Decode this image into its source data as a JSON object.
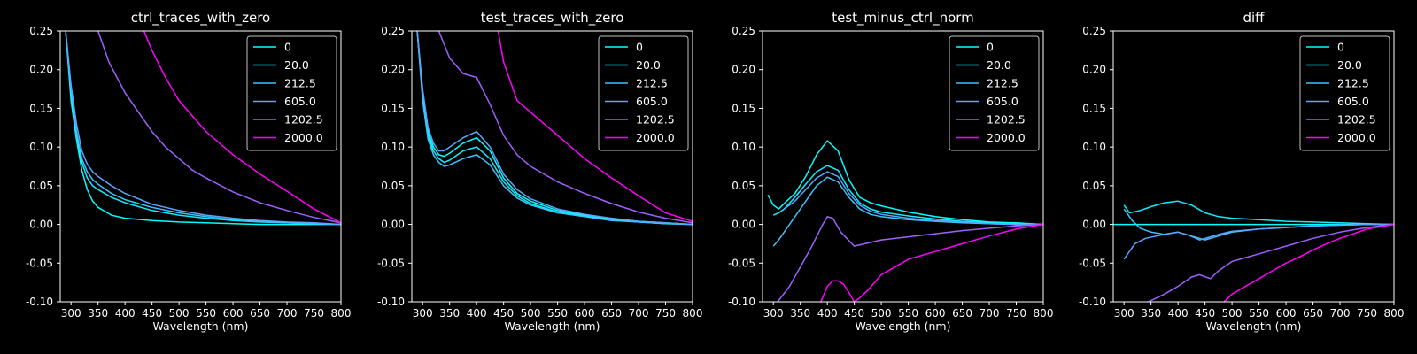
{
  "chart_data": [
    {
      "type": "line",
      "title": "ctrl_traces_with_zero",
      "xlabel": "Wavelength (nm)",
      "ylabel": "",
      "xlim": [
        280,
        800
      ],
      "ylim": [
        -0.1,
        0.25
      ],
      "xticks": [
        "300",
        "350",
        "400",
        "450",
        "500",
        "550",
        "600",
        "650",
        "700",
        "750",
        "800"
      ],
      "yticks": [
        "-0.10",
        "-0.05",
        "0.00",
        "0.05",
        "0.10",
        "0.15",
        "0.20",
        "0.25"
      ],
      "grid": false,
      "legend_position": "top-right",
      "series": [
        {
          "name": "0",
          "color": "#00ffff",
          "x": [
            290,
            300,
            310,
            320,
            330,
            340,
            350,
            375,
            400,
            450,
            500,
            550,
            600,
            650,
            700,
            750,
            800
          ],
          "y": [
            0.25,
            0.16,
            0.11,
            0.07,
            0.045,
            0.03,
            0.022,
            0.012,
            0.008,
            0.005,
            0.003,
            0.002,
            0.001,
            0.0,
            0.0,
            0.0,
            0.0
          ]
        },
        {
          "name": "20.0",
          "color": "#14ebff",
          "x": [
            290,
            300,
            310,
            320,
            330,
            340,
            350,
            375,
            400,
            450,
            500,
            550,
            600,
            650,
            700,
            750,
            800
          ],
          "y": [
            0.25,
            0.17,
            0.115,
            0.08,
            0.06,
            0.05,
            0.045,
            0.035,
            0.028,
            0.018,
            0.012,
            0.008,
            0.005,
            0.003,
            0.002,
            0.001,
            0.0
          ]
        },
        {
          "name": "212.5",
          "color": "#3cc3ff",
          "x": [
            290,
            300,
            310,
            320,
            330,
            340,
            350,
            375,
            400,
            450,
            500,
            550,
            600,
            650,
            700,
            750,
            800
          ],
          "y": [
            0.25,
            0.175,
            0.12,
            0.085,
            0.068,
            0.058,
            0.052,
            0.04,
            0.032,
            0.022,
            0.015,
            0.01,
            0.006,
            0.004,
            0.002,
            0.001,
            0.0
          ]
        },
        {
          "name": "605.0",
          "color": "#5aa5ff",
          "x": [
            290,
            300,
            310,
            320,
            330,
            340,
            350,
            375,
            400,
            450,
            500,
            550,
            600,
            650,
            700,
            750,
            800
          ],
          "y": [
            0.25,
            0.18,
            0.13,
            0.095,
            0.078,
            0.068,
            0.062,
            0.05,
            0.04,
            0.026,
            0.018,
            0.012,
            0.008,
            0.005,
            0.003,
            0.002,
            0.0
          ]
        },
        {
          "name": "1202.5",
          "color": "#a05fff",
          "x": [
            350,
            370,
            400,
            425,
            450,
            475,
            500,
            525,
            550,
            600,
            650,
            700,
            750,
            800
          ],
          "y": [
            0.25,
            0.21,
            0.17,
            0.145,
            0.12,
            0.1,
            0.085,
            0.07,
            0.06,
            0.042,
            0.028,
            0.018,
            0.009,
            0.002
          ]
        },
        {
          "name": "2000.0",
          "color": "#ff00ff",
          "x": [
            435,
            450,
            475,
            500,
            525,
            550,
            600,
            650,
            700,
            750,
            800
          ],
          "y": [
            0.25,
            0.225,
            0.19,
            0.16,
            0.14,
            0.12,
            0.09,
            0.065,
            0.043,
            0.02,
            0.002
          ]
        }
      ]
    },
    {
      "type": "line",
      "title": "test_traces_with_zero",
      "xlabel": "Wavelength (nm)",
      "ylabel": "",
      "xlim": [
        280,
        800
      ],
      "ylim": [
        -0.1,
        0.25
      ],
      "xticks": [
        "300",
        "350",
        "400",
        "450",
        "500",
        "550",
        "600",
        "650",
        "700",
        "750",
        "800"
      ],
      "yticks": [
        "-0.10",
        "-0.05",
        "0.00",
        "0.05",
        "0.10",
        "0.15",
        "0.20",
        "0.25"
      ],
      "grid": false,
      "legend_position": "top-right",
      "series": [
        {
          "name": "0",
          "color": "#00ffff",
          "x": [
            290,
            300,
            310,
            320,
            330,
            340,
            350,
            375,
            400,
            425,
            450,
            475,
            500,
            550,
            600,
            650,
            700,
            750,
            800
          ],
          "y": [
            0.25,
            0.17,
            0.12,
            0.1,
            0.09,
            0.088,
            0.092,
            0.105,
            0.112,
            0.095,
            0.06,
            0.04,
            0.03,
            0.018,
            0.012,
            0.007,
            0.004,
            0.002,
            0.0
          ]
        },
        {
          "name": "20.0",
          "color": "#14ebff",
          "x": [
            290,
            300,
            310,
            320,
            330,
            340,
            350,
            375,
            400,
            425,
            450,
            475,
            500,
            550,
            600,
            650,
            700,
            750,
            800
          ],
          "y": [
            0.25,
            0.165,
            0.115,
            0.095,
            0.085,
            0.08,
            0.083,
            0.095,
            0.1,
            0.085,
            0.055,
            0.037,
            0.027,
            0.016,
            0.011,
            0.006,
            0.003,
            0.001,
            0.0
          ]
        },
        {
          "name": "212.5",
          "color": "#3cc3ff",
          "x": [
            290,
            300,
            310,
            320,
            330,
            340,
            350,
            375,
            400,
            425,
            450,
            475,
            500,
            550,
            600,
            650,
            700,
            750,
            800
          ],
          "y": [
            0.25,
            0.16,
            0.11,
            0.09,
            0.08,
            0.075,
            0.077,
            0.085,
            0.09,
            0.077,
            0.05,
            0.034,
            0.025,
            0.015,
            0.01,
            0.005,
            0.003,
            0.001,
            0.0
          ]
        },
        {
          "name": "605.0",
          "color": "#5aa5ff",
          "x": [
            290,
            300,
            310,
            320,
            330,
            340,
            350,
            375,
            400,
            425,
            450,
            475,
            500,
            550,
            600,
            650,
            700,
            750,
            800
          ],
          "y": [
            0.25,
            0.175,
            0.125,
            0.105,
            0.095,
            0.095,
            0.1,
            0.112,
            0.12,
            0.1,
            0.065,
            0.045,
            0.033,
            0.02,
            0.013,
            0.008,
            0.004,
            0.002,
            0.0
          ]
        },
        {
          "name": "1202.5",
          "color": "#a05fff",
          "x": [
            330,
            350,
            375,
            400,
            425,
            450,
            475,
            500,
            550,
            600,
            650,
            700,
            750,
            800
          ],
          "y": [
            0.25,
            0.215,
            0.195,
            0.19,
            0.155,
            0.115,
            0.09,
            0.075,
            0.055,
            0.04,
            0.027,
            0.016,
            0.008,
            0.002
          ]
        },
        {
          "name": "2000.0",
          "color": "#ff00ff",
          "x": [
            440,
            450,
            475,
            500,
            525,
            550,
            575,
            600,
            650,
            700,
            750,
            800
          ],
          "y": [
            0.25,
            0.21,
            0.16,
            0.145,
            0.13,
            0.115,
            0.1,
            0.085,
            0.06,
            0.037,
            0.015,
            0.004
          ]
        }
      ]
    },
    {
      "type": "line",
      "title": "test_minus_ctrl_norm",
      "xlabel": "Wavelength (nm)",
      "ylabel": "",
      "xlim": [
        280,
        800
      ],
      "ylim": [
        -0.1,
        0.25
      ],
      "xticks": [
        "300",
        "350",
        "400",
        "450",
        "500",
        "550",
        "600",
        "650",
        "700",
        "750",
        "800"
      ],
      "yticks": [
        "-0.10",
        "-0.05",
        "0.00",
        "0.05",
        "0.10",
        "0.15",
        "0.20",
        "0.25"
      ],
      "grid": false,
      "legend_position": "top-right",
      "series": [
        {
          "name": "0",
          "color": "#00ffff",
          "x": [
            290,
            300,
            310,
            320,
            340,
            360,
            380,
            400,
            420,
            440,
            460,
            480,
            500,
            550,
            600,
            650,
            700,
            750,
            800
          ],
          "y": [
            0.038,
            0.025,
            0.02,
            0.027,
            0.04,
            0.062,
            0.09,
            0.108,
            0.095,
            0.058,
            0.035,
            0.028,
            0.024,
            0.016,
            0.01,
            0.006,
            0.003,
            0.002,
            0.0
          ]
        },
        {
          "name": "20.0",
          "color": "#14ebff",
          "x": [
            300,
            310,
            320,
            340,
            360,
            380,
            400,
            420,
            440,
            460,
            480,
            500,
            550,
            600,
            650,
            700,
            750,
            800
          ],
          "y": [
            0.012,
            0.015,
            0.02,
            0.035,
            0.052,
            0.068,
            0.076,
            0.07,
            0.045,
            0.028,
            0.02,
            0.016,
            0.011,
            0.007,
            0.004,
            0.002,
            0.001,
            0.0
          ]
        },
        {
          "name": "212.5",
          "color": "#3cc3ff",
          "x": [
            300,
            310,
            320,
            340,
            360,
            380,
            400,
            420,
            440,
            460,
            480,
            500,
            550,
            600,
            650,
            700,
            750,
            800
          ],
          "y": [
            -0.028,
            -0.02,
            -0.01,
            0.01,
            0.03,
            0.05,
            0.061,
            0.055,
            0.035,
            0.02,
            0.013,
            0.01,
            0.006,
            0.004,
            0.002,
            0.001,
            0.0,
            0.0
          ]
        },
        {
          "name": "605.0",
          "color": "#5aa5ff",
          "x": [
            320,
            340,
            360,
            380,
            400,
            420,
            440,
            460,
            480,
            500,
            550,
            600,
            650,
            700,
            750,
            800
          ],
          "y": [
            0.02,
            0.03,
            0.045,
            0.06,
            0.068,
            0.062,
            0.04,
            0.025,
            0.017,
            0.013,
            0.008,
            0.005,
            0.003,
            0.001,
            0.0,
            0.0
          ]
        },
        {
          "name": "1202.5",
          "color": "#a05fff",
          "x": [
            308,
            330,
            350,
            370,
            390,
            400,
            410,
            425,
            450,
            475,
            500,
            550,
            600,
            650,
            700,
            750,
            800
          ],
          "y": [
            -0.1,
            -0.08,
            -0.055,
            -0.03,
            -0.002,
            0.01,
            0.008,
            -0.01,
            -0.028,
            -0.024,
            -0.02,
            -0.016,
            -0.012,
            -0.008,
            -0.005,
            -0.002,
            0.0
          ]
        },
        {
          "name": "2000.0",
          "color": "#ff00ff",
          "x": [
            388,
            400,
            410,
            420,
            430,
            440,
            450,
            460,
            475,
            500,
            525,
            550,
            600,
            650,
            700,
            750,
            800
          ],
          "y": [
            -0.1,
            -0.08,
            -0.073,
            -0.073,
            -0.077,
            -0.088,
            -0.1,
            -0.095,
            -0.085,
            -0.065,
            -0.055,
            -0.045,
            -0.035,
            -0.025,
            -0.015,
            -0.006,
            0.0
          ]
        }
      ]
    },
    {
      "type": "line",
      "title": "diff",
      "xlabel": "Wavelength (nm)",
      "ylabel": "",
      "xlim": [
        280,
        800
      ],
      "ylim": [
        -0.1,
        0.25
      ],
      "xticks": [
        "300",
        "350",
        "400",
        "450",
        "500",
        "550",
        "600",
        "650",
        "700",
        "750",
        "800"
      ],
      "yticks": [
        "-0.10",
        "-0.05",
        "0.00",
        "0.05",
        "0.10",
        "0.15",
        "0.20",
        "0.25"
      ],
      "grid": false,
      "legend_position": "top-right",
      "series": [
        {
          "name": "0",
          "color": "#00ffff",
          "x": [
            280,
            800
          ],
          "y": [
            0.0,
            0.0
          ]
        },
        {
          "name": "20.0",
          "color": "#14ebff",
          "x": [
            300,
            310,
            330,
            350,
            375,
            400,
            425,
            450,
            475,
            500,
            550,
            600,
            650,
            700,
            750,
            800
          ],
          "y": [
            0.025,
            0.015,
            0.018,
            0.023,
            0.028,
            0.03,
            0.025,
            0.015,
            0.01,
            0.008,
            0.006,
            0.004,
            0.003,
            0.002,
            0.001,
            0.0
          ]
        },
        {
          "name": "212.5",
          "color": "#3cc3ff",
          "x": [
            300,
            315,
            330,
            350,
            375,
            400,
            425,
            450,
            475,
            500,
            550,
            600,
            650,
            700,
            750,
            800
          ],
          "y": [
            0.02,
            0.005,
            -0.005,
            -0.01,
            -0.013,
            -0.01,
            -0.015,
            -0.02,
            -0.015,
            -0.01,
            -0.006,
            -0.004,
            -0.002,
            -0.001,
            0.0,
            0.0
          ]
        },
        {
          "name": "605.0",
          "color": "#5aa5ff",
          "x": [
            300,
            310,
            320,
            340,
            360,
            380,
            400,
            420,
            440,
            460,
            480,
            500,
            550,
            600,
            650,
            700,
            750,
            800
          ],
          "y": [
            -0.045,
            -0.035,
            -0.025,
            -0.018,
            -0.015,
            -0.012,
            -0.01,
            -0.014,
            -0.02,
            -0.016,
            -0.012,
            -0.009,
            -0.006,
            -0.004,
            -0.002,
            -0.001,
            0.0,
            0.0
          ]
        },
        {
          "name": "1202.5",
          "color": "#a05fff",
          "x": [
            345,
            375,
            400,
            425,
            440,
            460,
            475,
            500,
            550,
            600,
            650,
            700,
            750,
            800
          ],
          "y": [
            -0.1,
            -0.09,
            -0.08,
            -0.068,
            -0.065,
            -0.07,
            -0.06,
            -0.048,
            -0.038,
            -0.028,
            -0.018,
            -0.01,
            -0.004,
            0.0
          ]
        },
        {
          "name": "2000.0",
          "color": "#ff00ff",
          "x": [
            485,
            500,
            525,
            550,
            575,
            600,
            625,
            650,
            675,
            700,
            725,
            750,
            800
          ],
          "y": [
            -0.1,
            -0.09,
            -0.08,
            -0.07,
            -0.06,
            -0.05,
            -0.042,
            -0.033,
            -0.025,
            -0.018,
            -0.012,
            -0.006,
            0.0
          ]
        }
      ]
    }
  ]
}
